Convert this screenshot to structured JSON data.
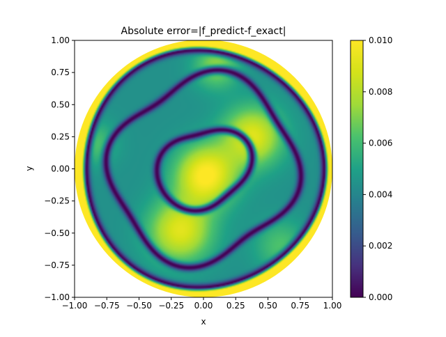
{
  "chart_data": {
    "type": "heatmap",
    "title": "Absolute error=|f_predict-f_exact|",
    "xlabel": "x",
    "ylabel": "y",
    "xlim": [
      -1.0,
      1.0
    ],
    "ylim": [
      -1.0,
      1.0
    ],
    "x_ticks": [
      "−1.00",
      "−0.75",
      "−0.50",
      "−0.25",
      "0.00",
      "0.25",
      "0.50",
      "0.75",
      "1.00"
    ],
    "x_tick_values": [
      -1.0,
      -0.75,
      -0.5,
      -0.25,
      0.0,
      0.25,
      0.5,
      0.75,
      1.0
    ],
    "y_ticks": [
      "−1.00",
      "−0.75",
      "−0.50",
      "−0.25",
      "0.00",
      "0.25",
      "0.50",
      "0.75",
      "1.00"
    ],
    "y_tick_values": [
      -1.0,
      -0.75,
      -0.5,
      -0.25,
      0.0,
      0.25,
      0.5,
      0.75,
      1.0
    ],
    "colorbar": {
      "colormap": "viridis",
      "range": [
        0.0,
        0.01
      ],
      "ticks": [
        "0.000",
        "0.002",
        "0.004",
        "0.006",
        "0.008",
        "0.010"
      ],
      "tick_values": [
        0.0,
        0.002,
        0.004,
        0.006,
        0.008,
        0.01
      ]
    },
    "domain_shape": "disk",
    "domain_radius": 1.0,
    "grid": false,
    "annotations": []
  }
}
